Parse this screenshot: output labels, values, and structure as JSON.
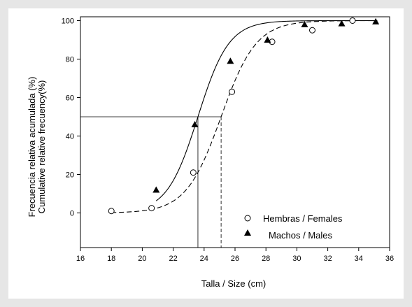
{
  "chart_data": {
    "type": "scatter",
    "title": "",
    "xlabel": "Talla / Size (cm)",
    "ylabel_lines": [
      "Frecuencia relativa acumulada (%)",
      "Cumulative relative frecuency(%)"
    ],
    "xlim": [
      16,
      36
    ],
    "ylim": [
      -18,
      102
    ],
    "xticks": [
      16,
      18,
      20,
      22,
      24,
      26,
      28,
      30,
      32,
      34,
      36
    ],
    "yticks": [
      0,
      20,
      40,
      60,
      80,
      100
    ],
    "grid": false,
    "legend": "bottom-right",
    "series": [
      {
        "name": "Hembras / Females",
        "marker": "open-circle",
        "line": "dashed",
        "x": [
          18.0,
          20.6,
          23.3,
          25.8,
          28.4,
          31.0,
          33.6
        ],
        "y": [
          1,
          2.5,
          21,
          63,
          89,
          95,
          100
        ],
        "l50": 25.1
      },
      {
        "name": "Machos / Males",
        "marker": "filled-triangle",
        "line": "solid",
        "x": [
          20.9,
          23.4,
          25.7,
          28.1,
          30.5,
          32.9,
          35.1
        ],
        "y": [
          12,
          46,
          79,
          90,
          98,
          98.5,
          99.5
        ],
        "l50": 23.6
      }
    ],
    "reference_y": 50
  }
}
